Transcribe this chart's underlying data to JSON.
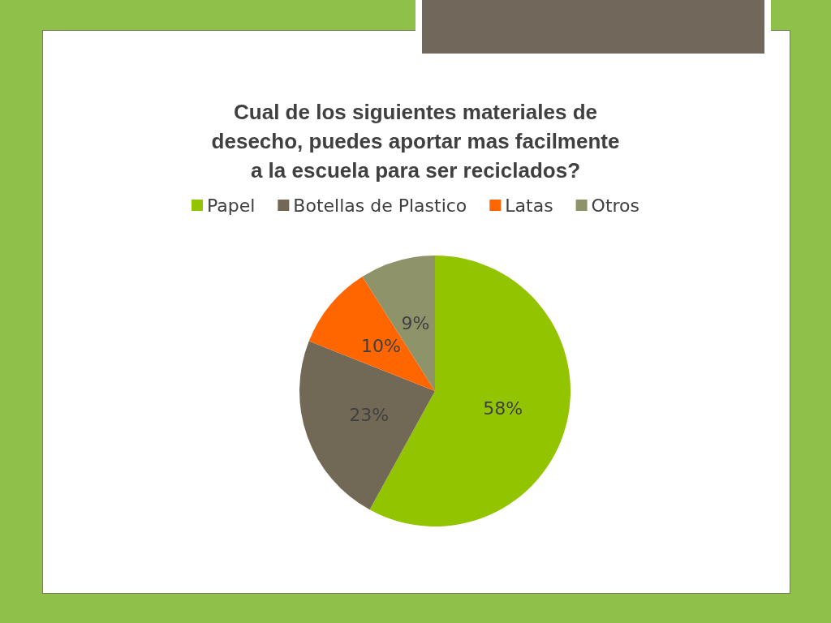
{
  "chart_data": {
    "type": "pie",
    "title": "Cual de los siguientes materiales de\ndesecho, puedes aportar mas facilmente\na la escuela para ser reciclados?",
    "categories": [
      "Papel",
      "Botellas de Plastico",
      "Latas",
      "Otros"
    ],
    "values": [
      58,
      23,
      10,
      9
    ],
    "colors": [
      "#93c400",
      "#726856",
      "#ff6600",
      "#8f9369"
    ],
    "value_labels": [
      "58%",
      "23%",
      "10%",
      "9%"
    ],
    "legend": "top"
  }
}
